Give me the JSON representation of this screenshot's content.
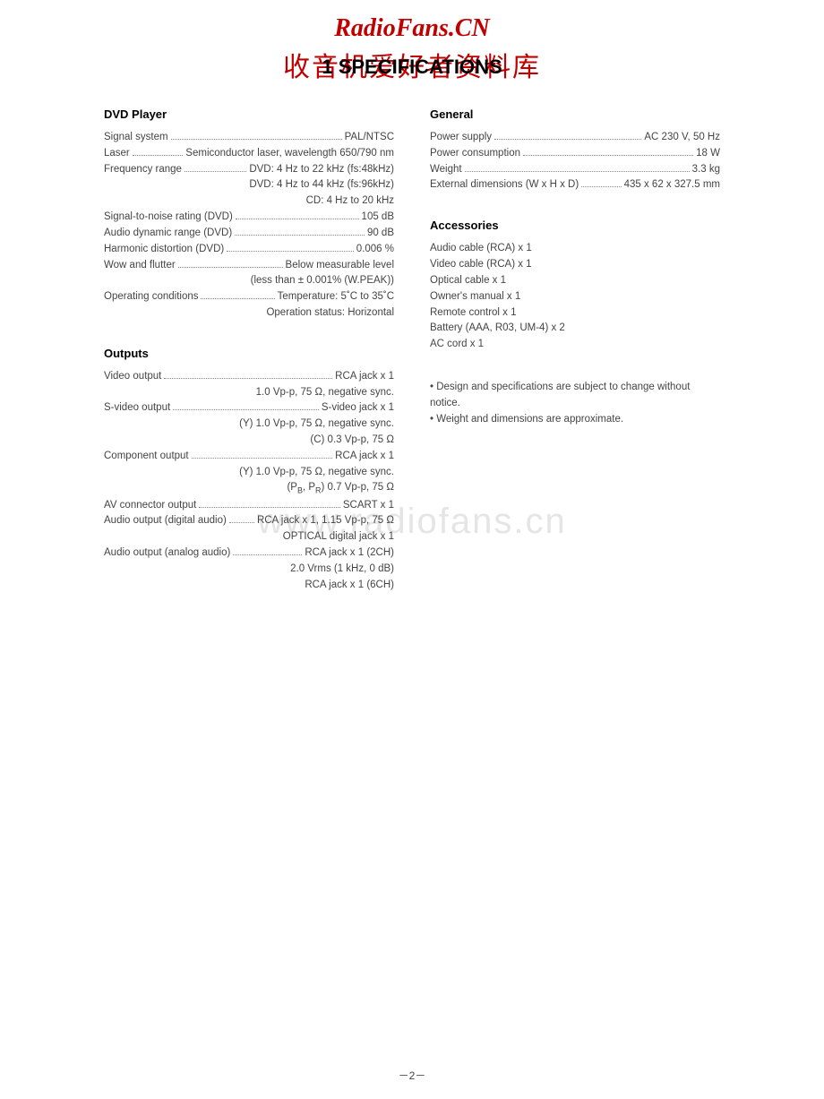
{
  "watermarks": {
    "top": "RadioFans.CN",
    "cn": "收音机爱好者资料库",
    "bg": "www.radiofans.cn"
  },
  "pageTitle": "1  SPECIFICATIONS",
  "pageNumber": "－2－",
  "colors": {
    "watermark": "#c00000",
    "text": "#444444",
    "heading": "#000000",
    "background": "#ffffff"
  },
  "left": {
    "dvd": {
      "title": "DVD Player",
      "rows": [
        {
          "label": "Signal system",
          "value": "PAL/NTSC"
        },
        {
          "label": "Laser",
          "value": "Semiconductor laser, wavelength 650/790 nm"
        },
        {
          "label": "Frequency range",
          "value": "DVD: 4 Hz to 22 kHz (fs:48kHz)"
        },
        {
          "cont": "DVD: 4 Hz to 44 kHz (fs:96kHz)"
        },
        {
          "cont": "CD: 4 Hz to 20 kHz"
        },
        {
          "label": "Signal-to-noise rating (DVD)",
          "value": "105 dB"
        },
        {
          "label": "Audio dynamic range (DVD)",
          "value": "90 dB"
        },
        {
          "label": "Harmonic distortion (DVD)",
          "value": "0.006 %"
        },
        {
          "label": "Wow and flutter",
          "value": "Below measurable level"
        },
        {
          "cont": "(less than ± 0.001% (W.PEAK))"
        },
        {
          "label": "Operating conditions",
          "value": "Temperature: 5˚C to 35˚C"
        },
        {
          "cont": "Operation status: Horizontal"
        }
      ]
    },
    "outputs": {
      "title": "Outputs",
      "rows": [
        {
          "label": "Video output",
          "value": "RCA jack x 1"
        },
        {
          "cont": "1.0 Vp-p, 75 Ω, negative sync."
        },
        {
          "label": "S-video output",
          "value": "S-video jack x 1"
        },
        {
          "cont": "(Y) 1.0 Vp-p, 75 Ω, negative sync."
        },
        {
          "cont": "(C) 0.3 Vp-p, 75 Ω"
        },
        {
          "label": "Component output",
          "value": "RCA jack x 1"
        },
        {
          "cont": "(Y) 1.0 Vp-p, 75 Ω, negative sync."
        },
        {
          "contHtml": "pbpr"
        },
        {
          "label": "AV connector output",
          "value": "SCART x 1"
        },
        {
          "label": "Audio output (digital audio)",
          "value": "RCA jack x 1, 1.15 Vp-p, 75 Ω"
        },
        {
          "cont": "OPTICAL digital jack x 1"
        },
        {
          "label": "Audio output (analog audio)",
          "value": "RCA jack x 1 (2CH)"
        },
        {
          "cont": "2.0 Vrms (1 kHz, 0 dB)"
        },
        {
          "cont": "RCA jack x 1 (6CH)"
        }
      ]
    }
  },
  "right": {
    "general": {
      "title": "General",
      "rows": [
        {
          "label": "Power supply",
          "value": "AC 230 V, 50 Hz"
        },
        {
          "label": "Power consumption",
          "value": "18 W"
        },
        {
          "label": "Weight",
          "value": "3.3 kg"
        },
        {
          "label": "External dimensions (W x H x D)",
          "value": "435 x 62 x 327.5 mm"
        }
      ]
    },
    "accessories": {
      "title": "Accessories",
      "items": [
        "Audio cable (RCA) x 1",
        "Video cable (RCA) x 1",
        "Optical cable x 1",
        "Owner's manual x 1",
        "Remote control x 1",
        "Battery (AAA, R03, UM-4) x 2",
        "AC cord x 1"
      ]
    },
    "notes": [
      "• Design and specifications are subject to change without notice.",
      "• Weight and dimensions are approximate."
    ]
  }
}
